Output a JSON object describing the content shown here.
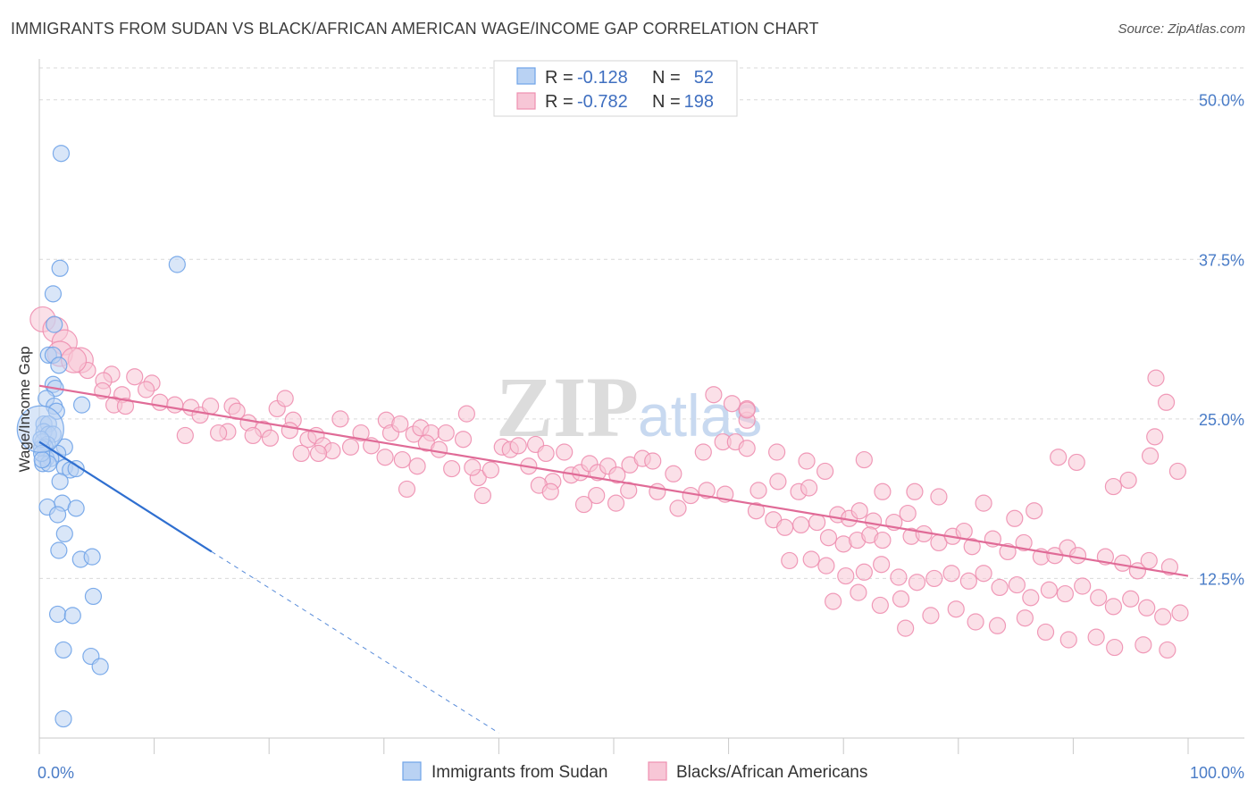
{
  "header": {
    "title": "IMMIGRANTS FROM SUDAN VS BLACK/AFRICAN AMERICAN WAGE/INCOME GAP CORRELATION CHART",
    "source": "Source: ZipAtlas.com"
  },
  "watermark": {
    "zip": "ZIP",
    "atlas": "atlas"
  },
  "chart_data": {
    "type": "scatter",
    "title": "IMMIGRANTS FROM SUDAN VS BLACK/AFRICAN AMERICAN WAGE/INCOME GAP CORRELATION CHART",
    "ylabel": "Wage/Income Gap",
    "xlabel": "",
    "xlim": [
      0,
      100
    ],
    "ylim": [
      0,
      52.5
    ],
    "x_tick_labels": [
      "0.0%",
      "100.0%"
    ],
    "y_ticks": [
      12.5,
      25.0,
      37.5,
      50.0
    ],
    "y_tick_labels": [
      "12.5%",
      "25.0%",
      "37.5%",
      "50.0%"
    ],
    "grid": true,
    "legend_position": "top-center",
    "stats": [
      {
        "r_label": "R =",
        "r": "-0.128",
        "n_label": "N =",
        "n": "52"
      },
      {
        "r_label": "R =",
        "r": "-0.782",
        "n_label": "N =",
        "n": "198"
      }
    ],
    "series": [
      {
        "name": "Immigrants from Sudan",
        "color": "#6fa3e8",
        "fill": "#b9d2f3",
        "line_color": "#2f6fd0",
        "trend": {
          "x0": 0,
          "y0": 23.2,
          "x1": 15.0,
          "y1": 14.6,
          "dash_x1": 40,
          "dash_y1": 0.4
        },
        "points": [
          [
            1.9,
            45.8
          ],
          [
            12,
            37.1
          ],
          [
            1.8,
            36.8
          ],
          [
            1.2,
            34.8
          ],
          [
            1.3,
            32.4
          ],
          [
            0.8,
            30
          ],
          [
            1.2,
            30
          ],
          [
            1.7,
            29.2
          ],
          [
            1.2,
            27.7
          ],
          [
            1.4,
            27.4
          ],
          [
            3.7,
            26.1
          ],
          [
            0.6,
            26.6
          ],
          [
            1.3,
            26
          ],
          [
            1.5,
            25.6
          ],
          [
            0.4,
            24.6
          ],
          [
            0.8,
            24.6
          ],
          [
            0.4,
            24
          ],
          [
            0.8,
            23.8
          ],
          [
            1.2,
            23.8
          ],
          [
            0.3,
            23.2
          ],
          [
            0.7,
            23
          ],
          [
            0.5,
            22.8
          ],
          [
            0.2,
            22.7
          ],
          [
            2.2,
            22.8
          ],
          [
            1.6,
            22.3
          ],
          [
            0.6,
            21.9
          ],
          [
            1.0,
            21.9
          ],
          [
            0.3,
            21.5
          ],
          [
            0.8,
            21.5
          ],
          [
            2.2,
            21.2
          ],
          [
            2.7,
            21.0
          ],
          [
            3.2,
            21.1
          ],
          [
            1.8,
            20.1
          ],
          [
            2.0,
            18.4
          ],
          [
            0.7,
            18.1
          ],
          [
            3.2,
            18.0
          ],
          [
            1.6,
            17.5
          ],
          [
            2.2,
            16.0
          ],
          [
            1.7,
            14.7
          ],
          [
            3.6,
            14.0
          ],
          [
            4.6,
            14.2
          ],
          [
            4.7,
            11.1
          ],
          [
            1.6,
            9.7
          ],
          [
            2.9,
            9.6
          ],
          [
            2.1,
            6.9
          ],
          [
            4.5,
            6.4
          ],
          [
            5.3,
            5.6
          ],
          [
            2.1,
            1.5
          ],
          [
            0.15,
            23.4
          ],
          [
            0.2,
            22.3
          ],
          [
            0.25,
            21.8
          ],
          [
            0.1,
            24.2
          ]
        ],
        "sizes": {
          "0.1,24.2": 26
        }
      },
      {
        "name": "Blacks/African Americans",
        "color": "#ee8fb0",
        "fill": "#f7c6d6",
        "line_color": "#e06b97",
        "trend": {
          "x0": 0,
          "y0": 27.6,
          "x1": 100,
          "y1": 12.7
        },
        "points": [
          [
            0.3,
            32.8
          ],
          [
            1.4,
            32
          ],
          [
            2.2,
            31
          ],
          [
            1.8,
            30.1
          ],
          [
            3.6,
            29.6
          ],
          [
            4.2,
            28.8
          ],
          [
            6.3,
            28.5
          ],
          [
            3.0,
            29.6
          ],
          [
            5.6,
            28
          ],
          [
            8.3,
            28.3
          ],
          [
            9.8,
            27.8
          ],
          [
            5.5,
            27.2
          ],
          [
            7.2,
            26.9
          ],
          [
            9.3,
            27.3
          ],
          [
            10.5,
            26.3
          ],
          [
            6.5,
            26.1
          ],
          [
            7.5,
            26.0
          ],
          [
            13.2,
            25.9
          ],
          [
            14.0,
            25.3
          ],
          [
            14.9,
            26
          ],
          [
            11.8,
            26.1
          ],
          [
            16.8,
            26
          ],
          [
            17.2,
            25.6
          ],
          [
            18.2,
            24.7
          ],
          [
            20.7,
            25.8
          ],
          [
            19.5,
            24.2
          ],
          [
            21.4,
            26.6
          ],
          [
            22.1,
            24.9
          ],
          [
            16.4,
            24.0
          ],
          [
            12.7,
            23.7
          ],
          [
            15.6,
            23.9
          ],
          [
            18.6,
            23.7
          ],
          [
            20.1,
            23.5
          ],
          [
            21.8,
            24.1
          ],
          [
            23.4,
            23.4
          ],
          [
            24.1,
            23.7
          ],
          [
            26.2,
            25
          ],
          [
            24.7,
            22.9
          ],
          [
            25.5,
            22.5
          ],
          [
            27.1,
            22.8
          ],
          [
            28.0,
            23.9
          ],
          [
            22.8,
            22.3
          ],
          [
            24.3,
            22.3
          ],
          [
            28.9,
            22.9
          ],
          [
            30.2,
            24.9
          ],
          [
            30.6,
            23.9
          ],
          [
            31.4,
            24.6
          ],
          [
            32.6,
            23.8
          ],
          [
            33.2,
            24.3
          ],
          [
            34.1,
            23.9
          ],
          [
            35.4,
            23.9
          ],
          [
            33.7,
            23.1
          ],
          [
            34.8,
            22.6
          ],
          [
            30.1,
            22.0
          ],
          [
            31.6,
            21.8
          ],
          [
            32.9,
            21.3
          ],
          [
            35.9,
            21.1
          ],
          [
            32.0,
            19.5
          ],
          [
            36.9,
            23.4
          ],
          [
            37.2,
            25.4
          ],
          [
            38.2,
            20.4
          ],
          [
            37.7,
            21.2
          ],
          [
            39.3,
            21.0
          ],
          [
            38.6,
            19.0
          ],
          [
            40.3,
            22.8
          ],
          [
            41.0,
            22.6
          ],
          [
            41.7,
            22.9
          ],
          [
            43.2,
            23.0
          ],
          [
            42.6,
            21.3
          ],
          [
            44.1,
            22.3
          ],
          [
            45.7,
            22.4
          ],
          [
            44.7,
            20.1
          ],
          [
            43.5,
            19.8
          ],
          [
            44.5,
            19.3
          ],
          [
            46.3,
            20.6
          ],
          [
            47.1,
            20.8
          ],
          [
            47.9,
            21.5
          ],
          [
            48.6,
            20.8
          ],
          [
            49.5,
            21.3
          ],
          [
            50.3,
            20.6
          ],
          [
            51.4,
            21.4
          ],
          [
            52.5,
            21.9
          ],
          [
            53.4,
            21.7
          ],
          [
            51.3,
            19.4
          ],
          [
            48.5,
            19.0
          ],
          [
            50.2,
            18.4
          ],
          [
            53.8,
            19.3
          ],
          [
            47.4,
            18.3
          ],
          [
            55.2,
            20.7
          ],
          [
            56.7,
            19.0
          ],
          [
            55.6,
            18.0
          ],
          [
            57.8,
            22.4
          ],
          [
            59.5,
            23.2
          ],
          [
            60.6,
            23.2
          ],
          [
            61.6,
            24.9
          ],
          [
            58.7,
            26.9
          ],
          [
            60.3,
            26.2
          ],
          [
            61.6,
            25.8
          ],
          [
            61.6,
            25.7
          ],
          [
            61.6,
            22.7
          ],
          [
            58.1,
            19.4
          ],
          [
            59.7,
            19.1
          ],
          [
            62.6,
            19.4
          ],
          [
            64.3,
            20.1
          ],
          [
            66.1,
            19.3
          ],
          [
            67.0,
            19.6
          ],
          [
            62.4,
            17.8
          ],
          [
            63.9,
            17.1
          ],
          [
            64.9,
            16.5
          ],
          [
            66.3,
            16.7
          ],
          [
            67.7,
            16.9
          ],
          [
            69.5,
            17.5
          ],
          [
            70.5,
            17.2
          ],
          [
            71.4,
            17.8
          ],
          [
            72.6,
            17.0
          ],
          [
            74.4,
            16.9
          ],
          [
            75.6,
            17.6
          ],
          [
            68.7,
            15.7
          ],
          [
            70.0,
            15.2
          ],
          [
            71.2,
            15.5
          ],
          [
            72.3,
            15.9
          ],
          [
            73.4,
            15.5
          ],
          [
            75.9,
            15.8
          ],
          [
            77.0,
            16.0
          ],
          [
            78.3,
            15.3
          ],
          [
            79.5,
            15.8
          ],
          [
            80.5,
            16.2
          ],
          [
            81.2,
            15.0
          ],
          [
            83.0,
            15.6
          ],
          [
            84.3,
            14.6
          ],
          [
            85.7,
            15.3
          ],
          [
            87.2,
            14.2
          ],
          [
            88.4,
            14.3
          ],
          [
            89.5,
            14.9
          ],
          [
            90.4,
            14.3
          ],
          [
            92.8,
            14.2
          ],
          [
            94.3,
            13.7
          ],
          [
            95.6,
            13.1
          ],
          [
            96.6,
            13.9
          ],
          [
            98.4,
            13.4
          ],
          [
            67.2,
            14.0
          ],
          [
            65.3,
            13.9
          ],
          [
            68.5,
            13.5
          ],
          [
            70.2,
            12.7
          ],
          [
            71.8,
            13.0
          ],
          [
            73.3,
            13.6
          ],
          [
            74.8,
            12.6
          ],
          [
            76.4,
            12.2
          ],
          [
            77.9,
            12.5
          ],
          [
            79.4,
            12.9
          ],
          [
            80.9,
            12.3
          ],
          [
            82.2,
            12.9
          ],
          [
            83.6,
            11.8
          ],
          [
            85.1,
            12.0
          ],
          [
            86.3,
            11.0
          ],
          [
            87.9,
            11.6
          ],
          [
            89.3,
            11.3
          ],
          [
            90.8,
            11.9
          ],
          [
            92.2,
            11.0
          ],
          [
            93.5,
            10.3
          ],
          [
            95.0,
            10.9
          ],
          [
            96.4,
            10.2
          ],
          [
            97.8,
            9.5
          ],
          [
            99.3,
            9.8
          ],
          [
            69.1,
            10.7
          ],
          [
            71.3,
            11.4
          ],
          [
            73.2,
            10.4
          ],
          [
            75.0,
            10.9
          ],
          [
            77.6,
            9.6
          ],
          [
            79.8,
            10.1
          ],
          [
            81.5,
            9.1
          ],
          [
            83.4,
            8.8
          ],
          [
            85.8,
            9.4
          ],
          [
            87.6,
            8.3
          ],
          [
            89.6,
            7.7
          ],
          [
            92.0,
            7.9
          ],
          [
            93.6,
            7.1
          ],
          [
            96.1,
            7.3
          ],
          [
            98.2,
            6.9
          ],
          [
            75.4,
            8.6
          ],
          [
            97.2,
            28.2
          ],
          [
            98.1,
            26.3
          ],
          [
            97.1,
            23.6
          ],
          [
            96.7,
            22.1
          ],
          [
            94.8,
            20.2
          ],
          [
            93.5,
            19.7
          ],
          [
            99.1,
            20.9
          ],
          [
            90.3,
            21.6
          ],
          [
            88.7,
            22.0
          ],
          [
            86.6,
            17.8
          ],
          [
            84.9,
            17.2
          ],
          [
            82.2,
            18.4
          ],
          [
            78.3,
            18.9
          ],
          [
            76.2,
            19.3
          ],
          [
            73.4,
            19.3
          ],
          [
            71.8,
            21.8
          ],
          [
            68.4,
            20.9
          ],
          [
            66.8,
            21.7
          ],
          [
            64.2,
            22.4
          ]
        ],
        "big_points": [
          [
            0.3,
            32.8
          ],
          [
            1.4,
            32
          ],
          [
            2.2,
            31
          ],
          [
            3.0,
            29.6
          ],
          [
            3.6,
            29.6
          ],
          [
            1.8,
            30.1
          ]
        ]
      }
    ]
  },
  "bottom_legend": [
    {
      "label": "Immigrants from Sudan"
    },
    {
      "label": "Blacks/African Americans"
    }
  ]
}
